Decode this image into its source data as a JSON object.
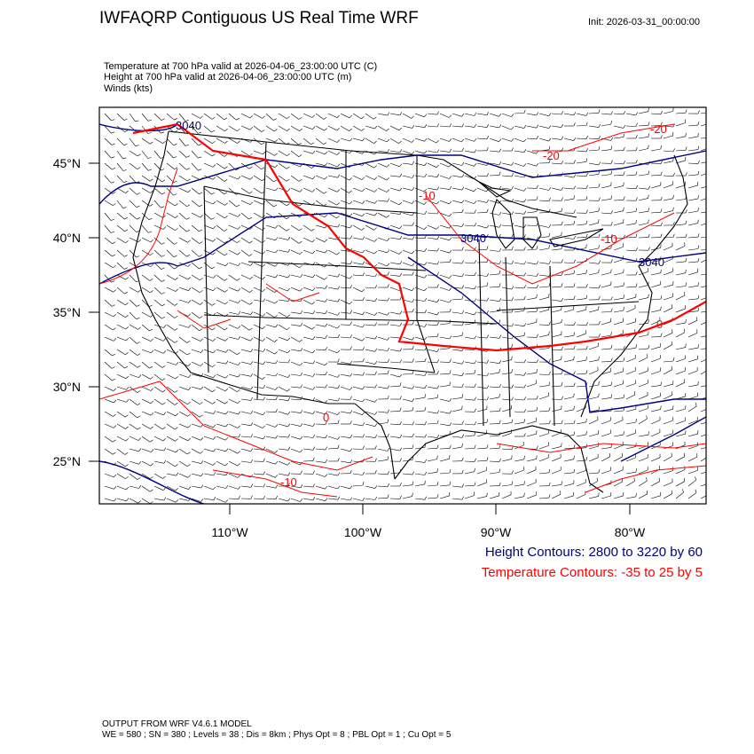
{
  "title": "IWFAQRP Contiguous US Real Time WRF",
  "init": "Init: 2026-03-31_00:00:00",
  "subtitle": {
    "line1": "Temperature at 700 hPa valid at 2026-04-06_23:00:00 UTC   (C)",
    "line2": "Height at 700 hPa valid at 2026-04-06_23:00:00 UTC   (m)",
    "line3": "Winds   (kts)"
  },
  "lat_labels": [
    "45°N",
    "40°N",
    "35°N",
    "30°N",
    "25°N"
  ],
  "lon_labels": [
    "110°W",
    "100°W",
    "90°W",
    "80°W"
  ],
  "height_contour_labels": [
    "3040",
    "3040",
    "3040"
  ],
  "temp_contour_labels": [
    "-20",
    "-20",
    "-10",
    "-10",
    "0",
    "0",
    "-10"
  ],
  "legend": {
    "height": "Height Contours: 2800 to 3220 by 60",
    "temperature": "Temperature Contours: -35 to 25 by 5"
  },
  "footer": {
    "line1": "OUTPUT FROM WRF V4.6.1 MODEL",
    "line2": "WE = 580 ; SN = 380 ; Levels = 38 ; Dis = 8km ; Phys Opt = 8 ; PBL Opt = 1 ; Cu Opt = 5"
  },
  "colors": {
    "height_contour": "#000080",
    "temperature_contour": "#ff0000",
    "boundaries": "#000000",
    "wind_barbs": "#000000"
  }
}
